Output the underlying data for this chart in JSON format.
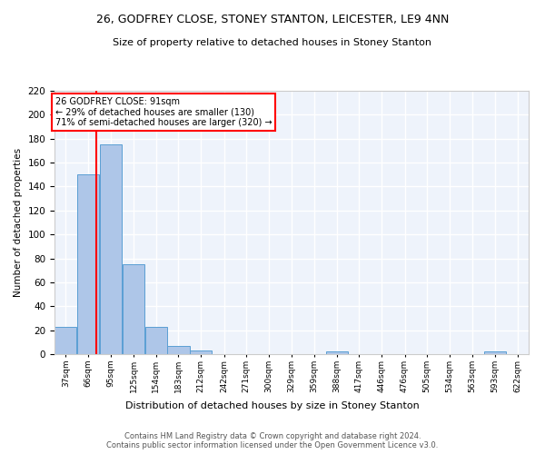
{
  "title": "26, GODFREY CLOSE, STONEY STANTON, LEICESTER, LE9 4NN",
  "subtitle": "Size of property relative to detached houses in Stoney Stanton",
  "xlabel": "Distribution of detached houses by size in Stoney Stanton",
  "ylabel": "Number of detached properties",
  "bar_bins": [
    37,
    66,
    95,
    125,
    154,
    183,
    212,
    242,
    271,
    300,
    329,
    359,
    388,
    417,
    446,
    476,
    505,
    534,
    563,
    593,
    622
  ],
  "bar_heights": [
    23,
    150,
    175,
    75,
    23,
    7,
    3,
    0,
    0,
    0,
    0,
    0,
    2,
    0,
    0,
    0,
    0,
    0,
    0,
    2,
    0
  ],
  "bar_color": "#aec6e8",
  "bar_edgecolor": "#5a9fd4",
  "vline_x": 91,
  "vline_color": "red",
  "annotation_text": "26 GODFREY CLOSE: 91sqm\n← 29% of detached houses are smaller (130)\n71% of semi-detached houses are larger (320) →",
  "annotation_box_color": "white",
  "annotation_box_edgecolor": "red",
  "ylim": [
    0,
    220
  ],
  "yticks": [
    0,
    20,
    40,
    60,
    80,
    100,
    120,
    140,
    160,
    180,
    200,
    220
  ],
  "footer": "Contains HM Land Registry data © Crown copyright and database right 2024.\nContains public sector information licensed under the Open Government Licence v3.0.",
  "bg_color": "#eef3fb",
  "grid_color": "white"
}
